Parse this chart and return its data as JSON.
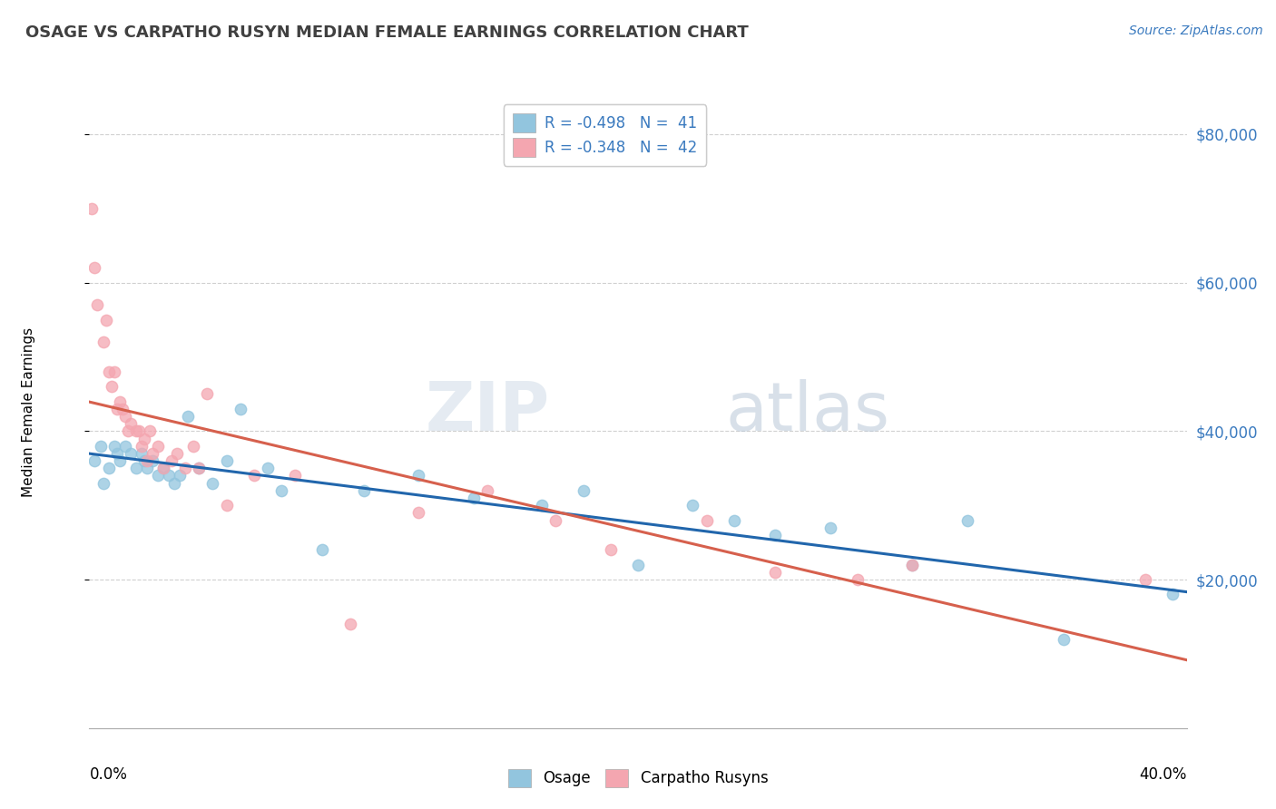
{
  "title": "OSAGE VS CARPATHO RUSYN MEDIAN FEMALE EARNINGS CORRELATION CHART",
  "source_text": "Source: ZipAtlas.com",
  "ylabel": "Median Female Earnings",
  "xlim": [
    0.0,
    40.0
  ],
  "ylim": [
    0,
    85000
  ],
  "yticks": [
    20000,
    40000,
    60000,
    80000
  ],
  "ytick_labels": [
    "$20,000",
    "$40,000",
    "$60,000",
    "$80,000"
  ],
  "watermark_zip": "ZIP",
  "watermark_atlas": "atlas",
  "legend_osage": "R = -0.498   N =  41",
  "legend_carpatho": "R = -0.348   N =  42",
  "osage_color": "#92c5de",
  "carpatho_color": "#f4a6b0",
  "osage_line_color": "#2166ac",
  "carpatho_line_color": "#d6604d",
  "background_color": "#ffffff",
  "grid_color": "#d0d0d0",
  "osage_x": [
    0.2,
    0.4,
    0.5,
    0.7,
    0.9,
    1.0,
    1.1,
    1.3,
    1.5,
    1.7,
    1.9,
    2.0,
    2.1,
    2.3,
    2.5,
    2.7,
    2.9,
    3.1,
    3.3,
    3.6,
    4.0,
    4.5,
    5.0,
    5.5,
    6.5,
    7.0,
    8.5,
    10.0,
    12.0,
    14.0,
    16.5,
    18.0,
    20.0,
    22.0,
    23.5,
    25.0,
    27.0,
    30.0,
    32.0,
    35.5,
    39.5
  ],
  "osage_y": [
    36000,
    38000,
    33000,
    35000,
    38000,
    37000,
    36000,
    38000,
    37000,
    35000,
    37000,
    36000,
    35000,
    36000,
    34000,
    35000,
    34000,
    33000,
    34000,
    42000,
    35000,
    33000,
    36000,
    43000,
    35000,
    32000,
    24000,
    32000,
    34000,
    31000,
    30000,
    32000,
    22000,
    30000,
    28000,
    26000,
    27000,
    22000,
    28000,
    12000,
    18000
  ],
  "carpatho_x": [
    0.1,
    0.2,
    0.3,
    0.5,
    0.6,
    0.7,
    0.8,
    0.9,
    1.0,
    1.1,
    1.2,
    1.3,
    1.4,
    1.5,
    1.7,
    1.8,
    1.9,
    2.0,
    2.1,
    2.2,
    2.3,
    2.5,
    2.7,
    3.0,
    3.2,
    3.5,
    3.8,
    4.0,
    4.3,
    5.0,
    6.0,
    7.5,
    9.5,
    12.0,
    14.5,
    17.0,
    19.0,
    22.5,
    25.0,
    28.0,
    30.0,
    38.5
  ],
  "carpatho_y": [
    70000,
    62000,
    57000,
    52000,
    55000,
    48000,
    46000,
    48000,
    43000,
    44000,
    43000,
    42000,
    40000,
    41000,
    40000,
    40000,
    38000,
    39000,
    36000,
    40000,
    37000,
    38000,
    35000,
    36000,
    37000,
    35000,
    38000,
    35000,
    45000,
    30000,
    34000,
    34000,
    14000,
    29000,
    32000,
    28000,
    24000,
    28000,
    21000,
    20000,
    22000,
    20000
  ]
}
